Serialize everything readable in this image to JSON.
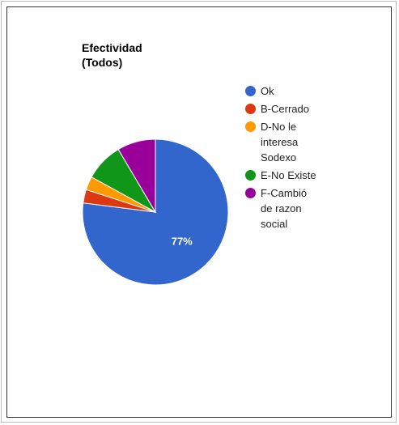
{
  "chart_data": {
    "type": "pie",
    "title": [
      "Efectividad",
      "(Todos)"
    ],
    "legend_position": "right",
    "slice_label": "77%",
    "slices": [
      {
        "label": [
          "Ok"
        ],
        "value": 77,
        "color": "#3366cc"
      },
      {
        "label": [
          "B-Cerrado"
        ],
        "value": 3,
        "color": "#dc3912"
      },
      {
        "label": [
          "D-No le",
          "interesa",
          "Sodexo"
        ],
        "value": 3,
        "color": "#ff9900"
      },
      {
        "label": [
          "E-No Existe"
        ],
        "value": 8.5,
        "color": "#109618"
      },
      {
        "label": [
          "F-Cambió",
          "de razon",
          "social"
        ],
        "value": 8.5,
        "color": "#990099"
      }
    ]
  }
}
